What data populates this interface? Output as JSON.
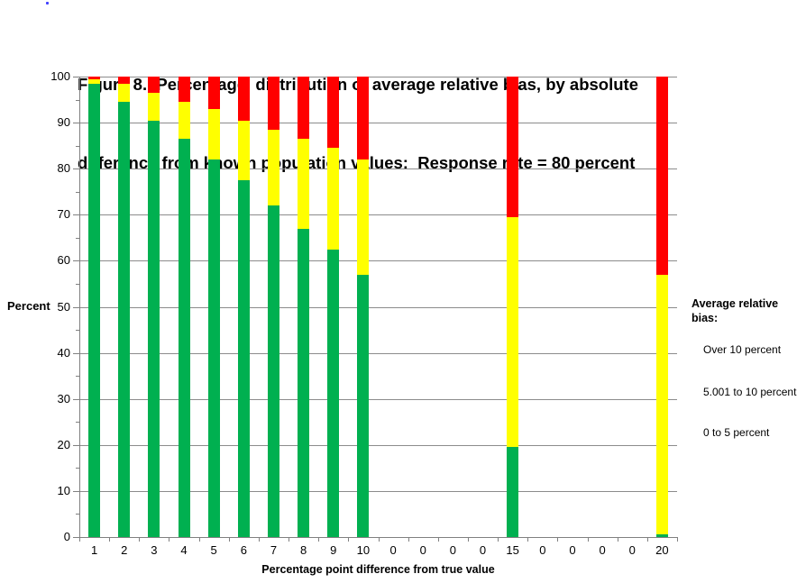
{
  "title": {
    "line1": "Figure 8.  Percentage  distribution of average relative bias, by absolute",
    "line2": "difference from known population values:  Response rate = 80 percent"
  },
  "y_axis": {
    "label": "Percent",
    "tick_values": [
      0,
      10,
      20,
      30,
      40,
      50,
      60,
      70,
      80,
      90,
      100
    ],
    "min": 0,
    "max": 100
  },
  "x_axis": {
    "label": "Percentage point difference from true value",
    "categories": [
      "1",
      "2",
      "3",
      "4",
      "5",
      "6",
      "7",
      "8",
      "9",
      "10",
      "0",
      "0",
      "0",
      "0",
      "15",
      "0",
      "0",
      "0",
      "0",
      "20"
    ]
  },
  "legend": {
    "title_line1": "Average relative",
    "title_line2": "bias:",
    "items": [
      {
        "label": "Over 10 percent",
        "color": "#FF0000"
      },
      {
        "label": "5.001 to 10 percent",
        "color": "#FFFF00"
      },
      {
        "label": "0 to 5 percent",
        "color": "#00B050"
      }
    ]
  },
  "colors": {
    "green": "#00B050",
    "yellow": "#FFFF00",
    "red": "#FF0000",
    "gridline": "#8c8c8c",
    "axis": "#808080",
    "stray_dot": "#4040FF"
  },
  "chart_data": {
    "type": "bar",
    "stacked": true,
    "title": "Figure 8. Percentage distribution of average relative bias, by absolute difference from known population values: Response rate = 80 percent",
    "xlabel": "Percentage point difference from true value",
    "ylabel": "Percent",
    "ylim": [
      0,
      100
    ],
    "grid": true,
    "legend_position": "right",
    "categories": [
      "1",
      "2",
      "3",
      "4",
      "5",
      "6",
      "7",
      "8",
      "9",
      "10",
      "0",
      "0",
      "0",
      "0",
      "15",
      "0",
      "0",
      "0",
      "0",
      "20"
    ],
    "series": [
      {
        "name": "0 to 5 percent",
        "color": "#00B050",
        "values": [
          98.5,
          94.5,
          90.5,
          86.5,
          82.0,
          77.5,
          72.0,
          67.0,
          62.5,
          57.0,
          0,
          0,
          0,
          0,
          19.5,
          0,
          0,
          0,
          0,
          0.5
        ]
      },
      {
        "name": "5.001 to 10 percent",
        "color": "#FFFF00",
        "values": [
          1.0,
          4.0,
          6.0,
          8.0,
          11.0,
          13.0,
          16.5,
          19.5,
          22.0,
          25.0,
          0,
          0,
          0,
          0,
          50.0,
          0,
          0,
          0,
          0,
          56.5
        ]
      },
      {
        "name": "Over 10 percent",
        "color": "#FF0000",
        "values": [
          0.5,
          1.5,
          3.5,
          5.5,
          7.0,
          9.5,
          11.5,
          13.5,
          15.5,
          18.0,
          0,
          0,
          0,
          0,
          30.5,
          0,
          0,
          0,
          0,
          43.0
        ]
      }
    ]
  }
}
